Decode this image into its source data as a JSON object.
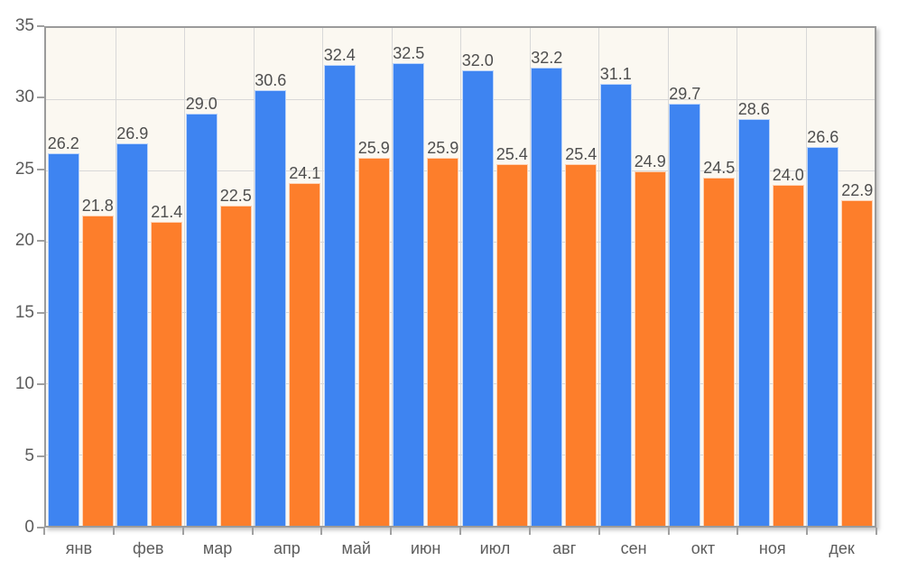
{
  "chart_data": {
    "type": "bar",
    "title": "",
    "categories": [
      "янв",
      "фев",
      "мар",
      "апр",
      "май",
      "июн",
      "июл",
      "авг",
      "сен",
      "окт",
      "ноя",
      "дек"
    ],
    "series": [
      {
        "name": "blue-series",
        "color": "#3e84f1",
        "values": [
          26.2,
          26.9,
          29.0,
          30.6,
          32.4,
          32.5,
          32.0,
          32.2,
          31.1,
          29.7,
          28.6,
          26.6
        ]
      },
      {
        "name": "orange-series",
        "color": "#fd7e2b",
        "values": [
          21.8,
          21.4,
          22.5,
          24.1,
          25.9,
          25.9,
          25.4,
          25.4,
          24.9,
          24.5,
          24.0,
          22.9
        ]
      }
    ],
    "ylim": [
      0,
      35
    ],
    "yticks": [
      0,
      5,
      10,
      15,
      20,
      25,
      30,
      35
    ],
    "grid": true,
    "legend_position": "none",
    "value_labels": true,
    "value_label_decimals": 1,
    "colors": {
      "page_background": "#ffffff",
      "plot_background": "#fbf8f1",
      "grid_line": "#d8d8d8",
      "axis_border": "#9b9b9b",
      "tick_mark": "#a0a0a0",
      "value_label": "#4e4e4e",
      "tick_label": "#5c5c5c"
    }
  }
}
